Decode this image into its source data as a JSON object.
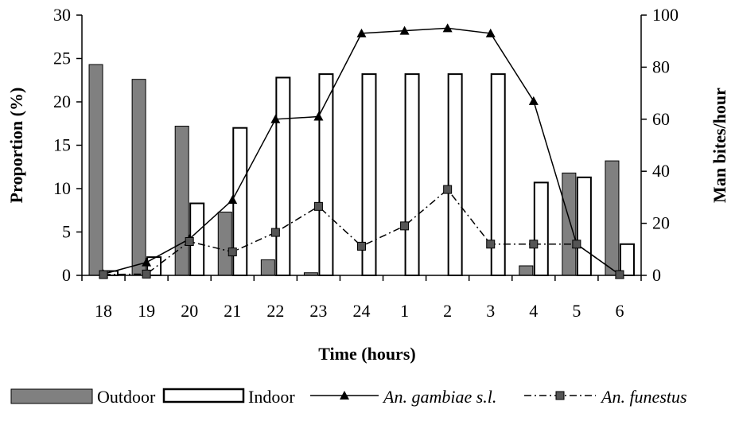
{
  "chart_data": {
    "type": "bar",
    "categories": [
      "18",
      "19",
      "20",
      "21",
      "22",
      "23",
      "24",
      "1",
      "2",
      "3",
      "4",
      "5",
      "6"
    ],
    "xlabel": "Time (hours)",
    "ylabel": "Proportion (%)",
    "y2label": "Man bites/hour",
    "ylim": [
      0,
      30
    ],
    "y2lim": [
      0,
      100
    ],
    "yticks": [
      0,
      5,
      10,
      15,
      20,
      25,
      30
    ],
    "y2ticks": [
      0,
      20,
      40,
      60,
      80,
      100
    ],
    "grid": false,
    "legend_position": "bottom",
    "series": [
      {
        "name": "Outdoor",
        "kind": "bar",
        "axis": "left",
        "color": "#808080",
        "values": [
          24.3,
          22.6,
          17.2,
          7.3,
          1.8,
          0.3,
          0,
          0,
          0,
          0,
          1.1,
          11.8,
          13.2
        ]
      },
      {
        "name": "Indoor",
        "kind": "bar",
        "axis": "left",
        "color": "#ffffff",
        "values": [
          0.5,
          2.1,
          8.3,
          17.0,
          22.8,
          23.2,
          23.2,
          23.2,
          23.2,
          23.2,
          10.7,
          11.3,
          3.6
        ]
      },
      {
        "name": "An. gambiae s.l.",
        "kind": "line",
        "axis": "right",
        "color": "#000000",
        "marker": "triangle",
        "values": [
          0.5,
          5,
          14,
          29,
          60,
          61,
          93,
          94,
          95,
          93,
          67,
          12,
          0.3
        ]
      },
      {
        "name": "An. funestus",
        "kind": "line",
        "axis": "right",
        "color": "#000000",
        "marker": "square",
        "dash": "dash-dot",
        "values": [
          0.3,
          0.5,
          13,
          9,
          16.5,
          26.5,
          11.2,
          19,
          33,
          12,
          12,
          12,
          0.3
        ]
      }
    ]
  }
}
